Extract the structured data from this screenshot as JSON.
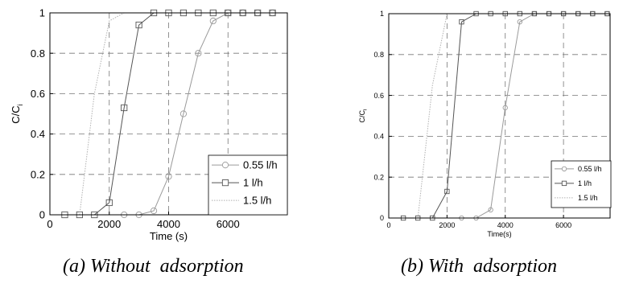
{
  "captions": [
    "(a) Without  adsorption",
    "(b) With  adsorption"
  ],
  "chart_data": [
    {
      "type": "line",
      "xlabel": "Time (s)",
      "ylabel": "C/C",
      "ylabel_subscript": "i",
      "xlim": [
        0,
        8000
      ],
      "ylim": [
        0,
        1
      ],
      "xticks": [
        "0",
        "2000",
        "4000",
        "6000"
      ],
      "yticks": [
        "0",
        "0.2",
        "0.4",
        "0.6",
        "0.8",
        "1"
      ],
      "grid": true,
      "legend_position": "lower-right",
      "series": [
        {
          "name": "0.55 l/h",
          "marker": "circle",
          "color": "#9a9a9a",
          "dash": "solid",
          "x": [
            2500,
            3000,
            3500,
            4000,
            4500,
            5000,
            5500,
            6000,
            6500,
            7000,
            7500
          ],
          "y": [
            0.0,
            0.0,
            0.02,
            0.19,
            0.5,
            0.8,
            0.96,
            1.0,
            1.0,
            1.0,
            1.0
          ]
        },
        {
          "name": "1 l/h",
          "marker": "square",
          "color": "#555555",
          "dash": "solid",
          "x": [
            500,
            1000,
            1500,
            2000,
            2500,
            3000,
            3500,
            4000,
            4500,
            5000,
            5500,
            6000,
            6500,
            7000,
            7500
          ],
          "y": [
            0.0,
            0.0,
            0.0,
            0.06,
            0.53,
            0.94,
            1.0,
            1.0,
            1.0,
            1.0,
            1.0,
            1.0,
            1.0,
            1.0,
            1.0
          ]
        },
        {
          "name": "1.5 l/h",
          "marker": "none",
          "color": "#b0b0b0",
          "dash": "dotted",
          "x": [
            1000,
            1500,
            2000,
            2500
          ],
          "y": [
            0.0,
            0.6,
            0.96,
            1.0
          ]
        }
      ]
    },
    {
      "type": "line",
      "xlabel": "Time(s)",
      "ylabel": "C/C",
      "ylabel_subscript": "i",
      "xlim": [
        0,
        7600
      ],
      "ylim": [
        0,
        1
      ],
      "xticks": [
        "0",
        "2000",
        "4000",
        "6000"
      ],
      "yticks": [
        "0",
        "0.2",
        "0.4",
        "0.6",
        "0.8",
        "1"
      ],
      "grid": true,
      "legend_position": "lower-right",
      "series": [
        {
          "name": "0.55 l/h",
          "marker": "circle",
          "color": "#9a9a9a",
          "dash": "solid",
          "x": [
            2500,
            3000,
            3500,
            4000,
            4500,
            5000,
            5500,
            6000,
            6500,
            7000,
            7500
          ],
          "y": [
            0.0,
            0.0,
            0.04,
            0.54,
            0.96,
            1.0,
            1.0,
            1.0,
            1.0,
            1.0,
            1.0
          ]
        },
        {
          "name": "1 l/h",
          "marker": "square",
          "color": "#555555",
          "dash": "solid",
          "x": [
            500,
            1000,
            1500,
            2000,
            2500,
            3000,
            3500,
            4000,
            4500,
            5000,
            5500,
            6000,
            6500,
            7000,
            7500
          ],
          "y": [
            0.0,
            0.0,
            0.0,
            0.13,
            0.96,
            1.0,
            1.0,
            1.0,
            1.0,
            1.0,
            1.0,
            1.0,
            1.0,
            1.0,
            1.0
          ]
        },
        {
          "name": "1.5 l/h",
          "marker": "none",
          "color": "#b0b0b0",
          "dash": "dotted",
          "x": [
            1000,
            1500,
            2000
          ],
          "y": [
            0.0,
            0.65,
            1.0
          ]
        }
      ]
    }
  ]
}
